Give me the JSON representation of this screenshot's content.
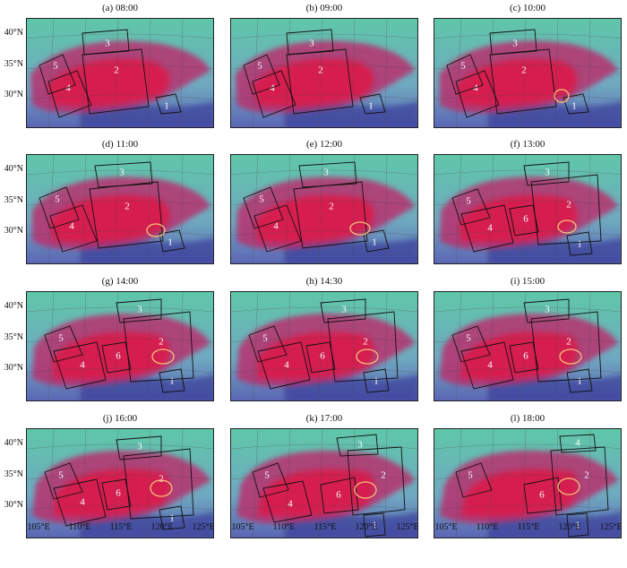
{
  "panels": [
    {
      "title": "(a) 08:00",
      "regions": [
        "1",
        "2",
        "3",
        "4",
        "5"
      ]
    },
    {
      "title": "(b) 09:00",
      "regions": [
        "1",
        "2",
        "3",
        "4",
        "5"
      ]
    },
    {
      "title": "(c) 10:00",
      "regions": [
        "1",
        "2",
        "3",
        "4",
        "5"
      ]
    },
    {
      "title": "(d) 11:00",
      "regions": [
        "1",
        "2",
        "3",
        "4",
        "5"
      ]
    },
    {
      "title": "(e) 12:00",
      "regions": [
        "1",
        "2",
        "3",
        "4",
        "5"
      ]
    },
    {
      "title": "(f) 13:00",
      "regions": [
        "1",
        "2",
        "3",
        "4",
        "5",
        "6"
      ]
    },
    {
      "title": "(g) 14:00",
      "regions": [
        "1",
        "2",
        "3",
        "4",
        "5",
        "6"
      ]
    },
    {
      "title": "(h) 14:30",
      "regions": [
        "1",
        "2",
        "3",
        "4",
        "5",
        "6"
      ]
    },
    {
      "title": "(i) 15:00",
      "regions": [
        "1",
        "2",
        "3",
        "4",
        "5",
        "6"
      ]
    },
    {
      "title": "(j) 16:00",
      "regions": [
        "1",
        "2",
        "3",
        "4",
        "5",
        "6"
      ]
    },
    {
      "title": "(k) 17:00",
      "regions": [
        "1",
        "2",
        "3",
        "4",
        "5",
        "6"
      ]
    },
    {
      "title": "(l) 18:00",
      "regions": [
        "1",
        "2",
        "4",
        "5",
        "6"
      ]
    }
  ],
  "y_axis_labels": [
    "40°N",
    "35°N",
    "30°N"
  ],
  "x_axis_labels": [
    "105°E",
    "110°E",
    "115°E",
    "120°E",
    "125°E"
  ],
  "colors": {
    "cloud_core": "#d81e4e",
    "cloud_edge": "#b8326e",
    "background_green": "#5fc7a8",
    "background_blue": "#5a63b4",
    "deep_blue": "#3a3f9a",
    "marker_ellipse": "#f2c27a",
    "outline": "#111111"
  }
}
